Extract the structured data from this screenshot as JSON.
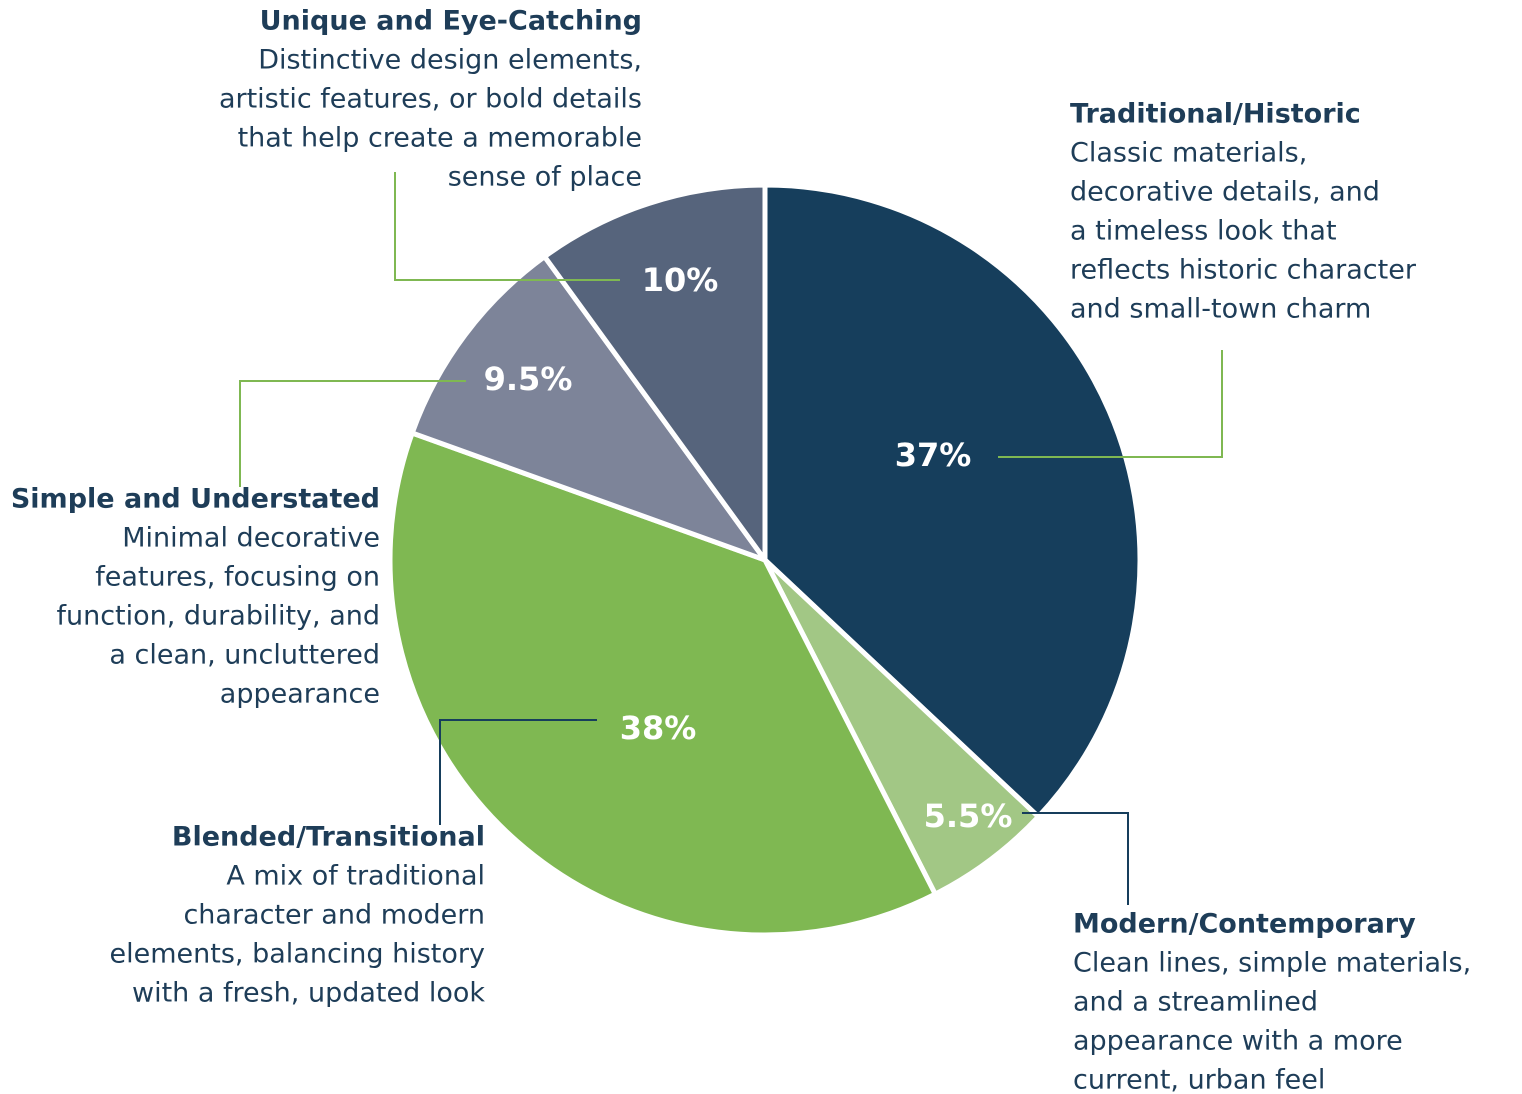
{
  "chart_data": {
    "type": "pie",
    "categories": [
      "Traditional/Historic",
      "Modern/Contemporary",
      "Blended/Transitional",
      "Simple and Understated",
      "Unique and Eye-Catching"
    ],
    "values": [
      37,
      5.5,
      38,
      9.5,
      10
    ],
    "value_labels": [
      "37%",
      "5.5%",
      "38%",
      "9.5%",
      "10%"
    ],
    "colors": [
      "#163e5c",
      "#a2c785",
      "#7fb852",
      "#7d8499",
      "#56647c"
    ],
    "descriptions": [
      [
        "Classic materials,",
        "decorative details, and",
        "a timeless look that",
        "reflects historic character",
        "and small-town charm"
      ],
      [
        "Clean lines, simple materials,",
        "and a streamlined",
        "appearance with a more",
        "current, urban feel"
      ],
      [
        "A mix of traditional",
        "character and modern",
        "elements, balancing history",
        "with a fresh, updated look"
      ],
      [
        "Minimal decorative",
        "features, focusing on",
        "function, durability, and",
        "a clean, uncluttered",
        "appearance"
      ],
      [
        "Distinctive design elements,",
        "artistic features, or bold details",
        "that help create a memorable",
        "sense of place"
      ]
    ]
  }
}
